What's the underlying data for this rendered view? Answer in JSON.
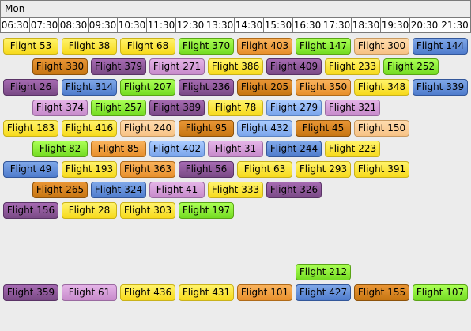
{
  "day_label": "Mon",
  "times": [
    "06:30",
    "07:30",
    "08:30",
    "09:30",
    "10:30",
    "11:30",
    "12:30",
    "13:30",
    "14:30",
    "15:30",
    "16:30",
    "17:30",
    "18:30",
    "19:30",
    "20:30",
    "21:30"
  ],
  "rows": [
    [
      {
        "label": "Flight 53",
        "color": "yellow",
        "start": 0.1,
        "span": 1.9
      },
      {
        "label": "Flight 38",
        "color": "yellow",
        "start": 2.1,
        "span": 1.9
      },
      {
        "label": "Flight 68",
        "color": "yellow",
        "start": 4.1,
        "span": 1.9
      },
      {
        "label": "Flight 370",
        "color": "green",
        "start": 6.1,
        "span": 1.9
      },
      {
        "label": "Flight 403",
        "color": "orange",
        "start": 8.1,
        "span": 1.9
      },
      {
        "label": "Flight 147",
        "color": "green",
        "start": 10.1,
        "span": 1.9
      },
      {
        "label": "Flight 300",
        "color": "lightorange",
        "start": 12.1,
        "span": 1.9
      },
      {
        "label": "Flight 144",
        "color": "blue",
        "start": 14.1,
        "span": 1.9
      }
    ],
    [
      {
        "label": "Flight 330",
        "color": "darkorange",
        "start": 1.1,
        "span": 1.9
      },
      {
        "label": "Flight 379",
        "color": "purple",
        "start": 3.1,
        "span": 1.9
      },
      {
        "label": "Flight 271",
        "color": "lilac",
        "start": 5.1,
        "span": 1.9
      },
      {
        "label": "Flight 386",
        "color": "yellow",
        "start": 7.1,
        "span": 1.9
      },
      {
        "label": "Flight 409",
        "color": "purple",
        "start": 9.1,
        "span": 1.9
      },
      {
        "label": "Flight 233",
        "color": "yellow",
        "start": 11.1,
        "span": 1.9
      },
      {
        "label": "Flight 252",
        "color": "green",
        "start": 13.1,
        "span": 1.9
      }
    ],
    [
      {
        "label": "Flight 26",
        "color": "purple",
        "start": 0.1,
        "span": 1.9
      },
      {
        "label": "Flight 314",
        "color": "blue",
        "start": 2.1,
        "span": 1.9
      },
      {
        "label": "Flight 207",
        "color": "green",
        "start": 4.1,
        "span": 1.9
      },
      {
        "label": "Flight 236",
        "color": "purple",
        "start": 6.1,
        "span": 1.9
      },
      {
        "label": "Flight 205",
        "color": "darkorange",
        "start": 8.1,
        "span": 1.9
      },
      {
        "label": "Flight 350",
        "color": "orange",
        "start": 10.1,
        "span": 1.9
      },
      {
        "label": "Flight 348",
        "color": "yellow",
        "start": 12.1,
        "span": 1.9
      },
      {
        "label": "Flight 339",
        "color": "blue",
        "start": 14.1,
        "span": 1.9
      }
    ],
    [
      {
        "label": "Flight 374",
        "color": "lilac",
        "start": 1.1,
        "span": 1.9
      },
      {
        "label": "Flight 257",
        "color": "green",
        "start": 3.1,
        "span": 1.9
      },
      {
        "label": "Flight 389",
        "color": "purple",
        "start": 5.1,
        "span": 1.9
      },
      {
        "label": "Flight 78",
        "color": "yellow",
        "start": 7.1,
        "span": 1.9
      },
      {
        "label": "Flight 279",
        "color": "lightblue",
        "start": 9.1,
        "span": 1.9
      },
      {
        "label": "Flight 321",
        "color": "lilac",
        "start": 11.1,
        "span": 1.9
      }
    ],
    [
      {
        "label": "Flight 183",
        "color": "yellow",
        "start": 0.1,
        "span": 1.9
      },
      {
        "label": "Flight 416",
        "color": "yellow",
        "start": 2.1,
        "span": 1.9
      },
      {
        "label": "Flight 240",
        "color": "lightorange",
        "start": 4.1,
        "span": 1.9
      },
      {
        "label": "Flight 95",
        "color": "darkorange",
        "start": 6.1,
        "span": 1.9
      },
      {
        "label": "Flight 432",
        "color": "lightblue",
        "start": 8.1,
        "span": 1.9
      },
      {
        "label": "Flight 45",
        "color": "darkorange",
        "start": 10.1,
        "span": 1.9
      },
      {
        "label": "Flight 150",
        "color": "lightorange",
        "start": 12.1,
        "span": 1.9
      }
    ],
    [
      {
        "label": "Flight 82",
        "color": "green",
        "start": 1.1,
        "span": 1.9
      },
      {
        "label": "Flight 85",
        "color": "orange",
        "start": 3.1,
        "span": 1.9
      },
      {
        "label": "Flight 402",
        "color": "lightblue",
        "start": 5.1,
        "span": 1.9
      },
      {
        "label": "Flight 31",
        "color": "lilac",
        "start": 7.1,
        "span": 1.9
      },
      {
        "label": "Flight 244",
        "color": "blue",
        "start": 9.1,
        "span": 1.9
      },
      {
        "label": "Flight 223",
        "color": "yellow",
        "start": 11.1,
        "span": 1.9
      }
    ],
    [
      {
        "label": "Flight 49",
        "color": "blue",
        "start": 0.1,
        "span": 1.9
      },
      {
        "label": "Flight 193",
        "color": "yellow",
        "start": 2.1,
        "span": 1.9
      },
      {
        "label": "Flight 363",
        "color": "orange",
        "start": 4.1,
        "span": 1.9
      },
      {
        "label": "Flight 56",
        "color": "purple",
        "start": 6.1,
        "span": 1.9
      },
      {
        "label": "Flight 63",
        "color": "yellow",
        "start": 8.1,
        "span": 1.9
      },
      {
        "label": "Flight 293",
        "color": "yellow",
        "start": 10.1,
        "span": 1.9
      },
      {
        "label": "Flight 391",
        "color": "yellow",
        "start": 12.1,
        "span": 1.9
      }
    ],
    [
      {
        "label": "Flight 265",
        "color": "darkorange",
        "start": 1.1,
        "span": 1.9
      },
      {
        "label": "Flight 324",
        "color": "blue",
        "start": 3.1,
        "span": 1.9
      },
      {
        "label": "Flight 41",
        "color": "lilac",
        "start": 5.1,
        "span": 1.9
      },
      {
        "label": "Flight 333",
        "color": "yellow",
        "start": 7.1,
        "span": 1.9
      },
      {
        "label": "Flight 326",
        "color": "purple",
        "start": 9.1,
        "span": 1.9
      }
    ],
    [
      {
        "label": "Flight 156",
        "color": "purple",
        "start": 0.1,
        "span": 1.9
      },
      {
        "label": "Flight 28",
        "color": "yellow",
        "start": 2.1,
        "span": 1.9
      },
      {
        "label": "Flight 303",
        "color": "yellow",
        "start": 4.1,
        "span": 1.9
      },
      {
        "label": "Flight 197",
        "color": "green",
        "start": 6.1,
        "span": 1.9
      }
    ],
    [],
    [],
    [
      {
        "label": "Flight 212",
        "color": "green",
        "start": 10.1,
        "span": 1.9
      }
    ],
    [
      {
        "label": "Flight 359",
        "color": "purple",
        "start": 0.1,
        "span": 1.9
      },
      {
        "label": "Flight 61",
        "color": "lilac",
        "start": 2.1,
        "span": 1.9
      },
      {
        "label": "Flight 436",
        "color": "yellow",
        "start": 4.1,
        "span": 1.9
      },
      {
        "label": "Flight 431",
        "color": "yellow",
        "start": 6.1,
        "span": 1.9
      },
      {
        "label": "Flight 101",
        "color": "orange",
        "start": 8.1,
        "span": 1.9
      },
      {
        "label": "Flight 427",
        "color": "blue",
        "start": 10.1,
        "span": 1.9
      },
      {
        "label": "Flight 155",
        "color": "darkorange",
        "start": 12.1,
        "span": 1.9
      },
      {
        "label": "Flight 107",
        "color": "green",
        "start": 14.1,
        "span": 1.9
      }
    ]
  ]
}
